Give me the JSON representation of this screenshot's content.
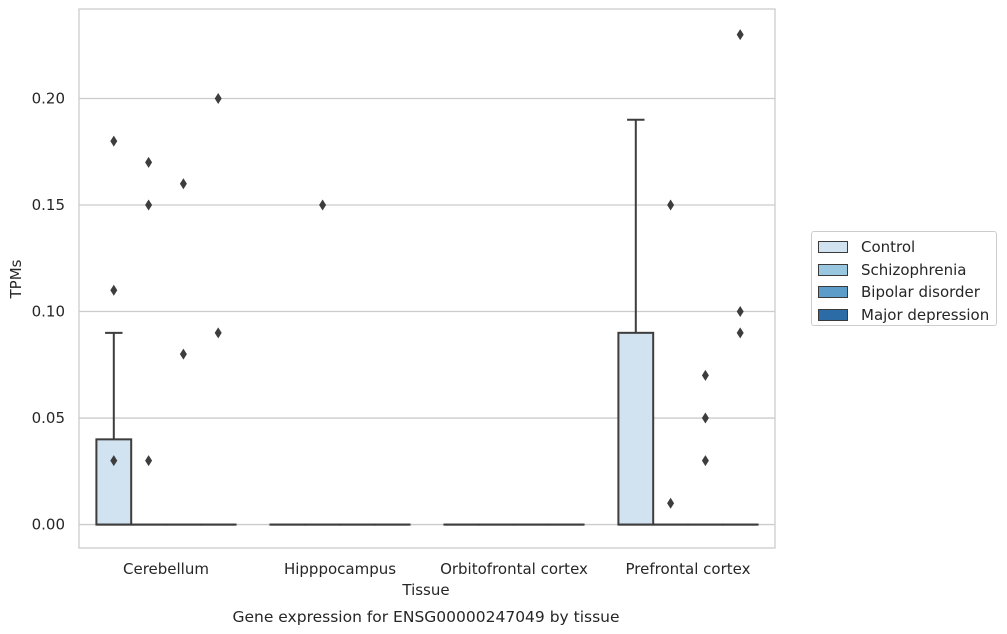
{
  "chart_data": {
    "type": "box",
    "title": "Gene expression for ENSG00000247049 by tissue",
    "xlabel": "Tissue",
    "ylabel": "TPMs",
    "ylim": [
      -0.011,
      0.242
    ],
    "yticks": [
      "0.00",
      "0.05",
      "0.10",
      "0.15",
      "0.20"
    ],
    "grid": "horizontal",
    "legend_position": "right",
    "categories": [
      "Cerebellum",
      "Hipppocampus",
      "Orbitofrontal cortex",
      "Prefrontal cortex"
    ],
    "series": [
      {
        "name": "Control",
        "color": "#d1e2f1",
        "boxes": [
          {
            "q1": 0.0,
            "median": 0.0,
            "q3": 0.04,
            "whisker_low": 0.0,
            "whisker_high": 0.09,
            "outliers": [
              0.03,
              0.11,
              0.18
            ]
          },
          {
            "q1": 0.0,
            "median": 0.0,
            "q3": 0.0,
            "whisker_low": 0.0,
            "whisker_high": 0.0,
            "outliers": []
          },
          {
            "q1": 0.0,
            "median": 0.0,
            "q3": 0.0,
            "whisker_low": 0.0,
            "whisker_high": 0.0,
            "outliers": []
          },
          {
            "q1": 0.0,
            "median": 0.0,
            "q3": 0.09,
            "whisker_low": 0.0,
            "whisker_high": 0.19,
            "outliers": []
          }
        ]
      },
      {
        "name": "Schizophrenia",
        "color": "#9ac7e0",
        "boxes": [
          {
            "q1": 0.0,
            "median": 0.0,
            "q3": 0.0,
            "whisker_low": 0.0,
            "whisker_high": 0.0,
            "outliers": [
              0.03,
              0.15,
              0.17
            ]
          },
          {
            "q1": 0.0,
            "median": 0.0,
            "q3": 0.0,
            "whisker_low": 0.0,
            "whisker_high": 0.0,
            "outliers": [
              0.15
            ]
          },
          {
            "q1": 0.0,
            "median": 0.0,
            "q3": 0.0,
            "whisker_low": 0.0,
            "whisker_high": 0.0,
            "outliers": []
          },
          {
            "q1": 0.0,
            "median": 0.0,
            "q3": 0.0,
            "whisker_low": 0.0,
            "whisker_high": 0.0,
            "outliers": [
              0.01,
              0.15
            ]
          }
        ]
      },
      {
        "name": "Bipolar disorder",
        "color": "#5b9cc9",
        "boxes": [
          {
            "q1": 0.0,
            "median": 0.0,
            "q3": 0.0,
            "whisker_low": 0.0,
            "whisker_high": 0.0,
            "outliers": [
              0.08,
              0.16
            ]
          },
          {
            "q1": 0.0,
            "median": 0.0,
            "q3": 0.0,
            "whisker_low": 0.0,
            "whisker_high": 0.0,
            "outliers": []
          },
          {
            "q1": 0.0,
            "median": 0.0,
            "q3": 0.0,
            "whisker_low": 0.0,
            "whisker_high": 0.0,
            "outliers": []
          },
          {
            "q1": 0.0,
            "median": 0.0,
            "q3": 0.0,
            "whisker_low": 0.0,
            "whisker_high": 0.0,
            "outliers": [
              0.03,
              0.05,
              0.07
            ]
          }
        ]
      },
      {
        "name": "Major depression",
        "color": "#2b6ca6",
        "boxes": [
          {
            "q1": 0.0,
            "median": 0.0,
            "q3": 0.0,
            "whisker_low": 0.0,
            "whisker_high": 0.0,
            "outliers": [
              0.09,
              0.2
            ]
          },
          {
            "q1": 0.0,
            "median": 0.0,
            "q3": 0.0,
            "whisker_low": 0.0,
            "whisker_high": 0.0,
            "outliers": []
          },
          {
            "q1": 0.0,
            "median": 0.0,
            "q3": 0.0,
            "whisker_low": 0.0,
            "whisker_high": 0.0,
            "outliers": []
          },
          {
            "q1": 0.0,
            "median": 0.0,
            "q3": 0.0,
            "whisker_low": 0.0,
            "whisker_high": 0.0,
            "outliers": [
              0.09,
              0.1,
              0.23
            ]
          }
        ]
      }
    ]
  }
}
